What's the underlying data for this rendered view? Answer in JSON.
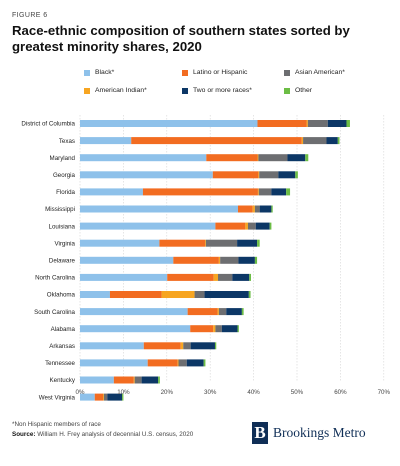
{
  "figure_label": "FIGURE 6",
  "title": "Race-ethnic composition of southern states sorted by greatest minority shares, 2020",
  "footnote": "*Non Hispanic members of race",
  "source": {
    "label": "Source:",
    "text": "William H. Frey analysis of decennial U.S. census, 2020"
  },
  "logo": {
    "mark": "B",
    "text": "Brookings Metro"
  },
  "colors": {
    "black": "#8ec1ea",
    "latino": "#f26c21",
    "asian": "#6d6e71",
    "american_indian": "#f7a521",
    "two_or_more": "#0c3766",
    "other": "#6cbd45"
  },
  "chart_data": {
    "type": "bar",
    "orientation": "horizontal",
    "stacked": true,
    "title": "Race-ethnic composition of southern states sorted by greatest minority shares, 2020",
    "xlabel": "",
    "ylabel": "",
    "xlim": [
      0,
      70
    ],
    "xticks": [
      "0%",
      "10%",
      "20%",
      "30%",
      "40%",
      "50%",
      "60%",
      "70%"
    ],
    "xtick_values": [
      0,
      10,
      20,
      30,
      40,
      50,
      60,
      70
    ],
    "grid": true,
    "legend_position": "top",
    "categories": [
      "District of Columbia",
      "Texas",
      "Maryland",
      "Georgia",
      "Florida",
      "Mississippi",
      "Louisiana",
      "Virginia",
      "Delaware",
      "North Carolina",
      "Oklahoma",
      "South Carolina",
      "Alabama",
      "Arkansas",
      "Tennessee",
      "Kentucky",
      "West Virginia"
    ],
    "series": [
      {
        "name": "Black*",
        "color_key": "black",
        "values": [
          40.9,
          11.8,
          29.1,
          30.6,
          14.5,
          36.4,
          31.2,
          18.3,
          21.5,
          20.1,
          6.9,
          24.8,
          25.4,
          14.7,
          15.6,
          7.8,
          3.4
        ]
      },
      {
        "name": "Latino or Hispanic",
        "color_key": "latino",
        "values": [
          11.3,
          39.3,
          11.8,
          10.5,
          26.5,
          3.4,
          6.9,
          10.5,
          10.5,
          10.7,
          11.9,
          6.9,
          5.3,
          8.5,
          6.9,
          4.6,
          1.9
        ]
      },
      {
        "name": "American Indian*",
        "color_key": "american_indian",
        "values": [
          0.3,
          0.3,
          0.2,
          0.2,
          0.2,
          0.5,
          0.6,
          0.2,
          0.3,
          1.0,
          7.6,
          0.3,
          0.5,
          0.6,
          0.2,
          0.2,
          0.2
        ]
      },
      {
        "name": "Asian American*",
        "color_key": "asian",
        "values": [
          4.6,
          5.4,
          6.7,
          4.4,
          2.9,
          1.1,
          1.8,
          7.2,
          4.2,
          3.3,
          2.3,
          1.7,
          1.5,
          1.7,
          1.9,
          1.6,
          0.8
        ]
      },
      {
        "name": "Two or more races*",
        "color_key": "two_or_more",
        "values": [
          4.3,
          2.6,
          4.1,
          3.9,
          3.4,
          2.7,
          3.2,
          4.6,
          3.8,
          3.9,
          10.2,
          3.6,
          3.6,
          5.6,
          3.9,
          3.8,
          3.4
        ]
      },
      {
        "name": "Other",
        "color_key": "other",
        "values": [
          0.8,
          0.4,
          0.7,
          0.6,
          0.9,
          0.3,
          0.4,
          0.6,
          0.5,
          0.4,
          0.4,
          0.4,
          0.3,
          0.3,
          0.4,
          0.4,
          0.3
        ]
      }
    ],
    "legend": [
      {
        "name": "Black*",
        "color_key": "black"
      },
      {
        "name": "Latino or Hispanic",
        "color_key": "latino"
      },
      {
        "name": "Asian American*",
        "color_key": "asian"
      },
      {
        "name": "American Indian*",
        "color_key": "american_indian"
      },
      {
        "name": "Two or more races*",
        "color_key": "two_or_more"
      },
      {
        "name": "Other",
        "color_key": "other"
      }
    ]
  }
}
